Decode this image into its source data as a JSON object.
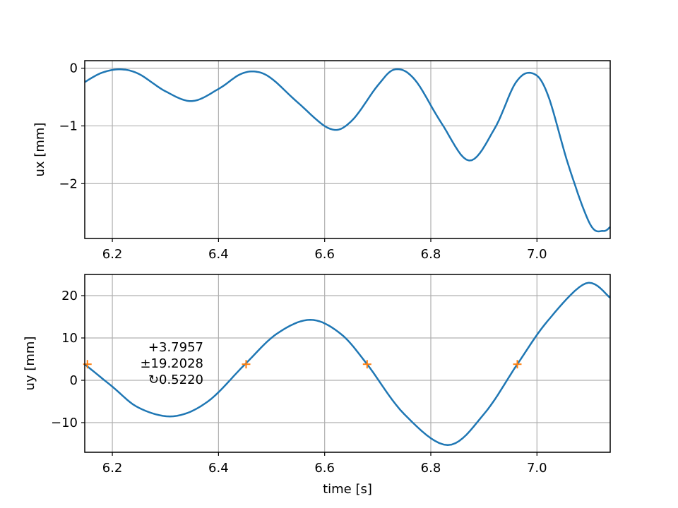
{
  "chart_data": [
    {
      "type": "line",
      "title": "",
      "xlabel": "",
      "ylabel": "ux [mm]",
      "xlim": [
        6.148,
        7.138
      ],
      "ylim": [
        -2.95,
        0.13
      ],
      "xticks": [
        6.2,
        6.4,
        6.6,
        6.8,
        7.0
      ],
      "xtick_labels": [
        "6.2",
        "6.4",
        "6.6",
        "6.8",
        "7.0"
      ],
      "yticks": [
        0,
        -1,
        -2
      ],
      "ytick_labels": [
        "0",
        "−1",
        "−2"
      ],
      "grid": true,
      "series": [
        {
          "color": "#1f77b4",
          "x": [
            6.148,
            6.18,
            6.215,
            6.25,
            6.3,
            6.35,
            6.4,
            6.44,
            6.47,
            6.5,
            6.55,
            6.61,
            6.65,
            6.7,
            6.733,
            6.77,
            6.82,
            6.872,
            6.92,
            6.96,
            6.992,
            7.02,
            7.06,
            7.1,
            7.125,
            7.138
          ],
          "y": [
            -0.24,
            -0.08,
            -0.02,
            -0.1,
            -0.4,
            -0.57,
            -0.36,
            -0.11,
            -0.06,
            -0.18,
            -0.6,
            -1.05,
            -0.92,
            -0.3,
            -0.02,
            -0.2,
            -0.95,
            -1.6,
            -1.05,
            -0.25,
            -0.09,
            -0.45,
            -1.7,
            -2.7,
            -2.82,
            -2.75
          ]
        }
      ]
    },
    {
      "type": "line",
      "title": "",
      "xlabel": "time [s]",
      "ylabel": "uy [mm]",
      "xlim": [
        6.148,
        7.138
      ],
      "ylim": [
        -17,
        25
      ],
      "xticks": [
        6.2,
        6.4,
        6.6,
        6.8,
        7.0
      ],
      "xtick_labels": [
        "6.2",
        "6.4",
        "6.6",
        "6.8",
        "7.0"
      ],
      "yticks": [
        20,
        10,
        0,
        -10
      ],
      "ytick_labels": [
        "20",
        "10",
        "0",
        "−10"
      ],
      "grid": true,
      "series": [
        {
          "color": "#1f77b4",
          "x": [
            6.148,
            6.2,
            6.25,
            6.315,
            6.38,
            6.45,
            6.51,
            6.573,
            6.63,
            6.68,
            6.75,
            6.832,
            6.9,
            6.963,
            7.02,
            7.092,
            7.138
          ],
          "y": [
            3.8,
            -1.5,
            -6.5,
            -8.5,
            -5.0,
            3.8,
            11.0,
            14.3,
            11.0,
            3.8,
            -8.0,
            -15.3,
            -8.0,
            3.8,
            14.0,
            22.9,
            19.5
          ]
        }
      ],
      "markers": {
        "color": "#ff7f0e",
        "x": [
          6.153,
          6.452,
          6.68,
          6.963
        ],
        "y": [
          3.8,
          3.8,
          3.8,
          3.8
        ]
      },
      "annotations": [
        "+3.7957",
        "±19.2028",
        "↻0.5220"
      ]
    }
  ]
}
